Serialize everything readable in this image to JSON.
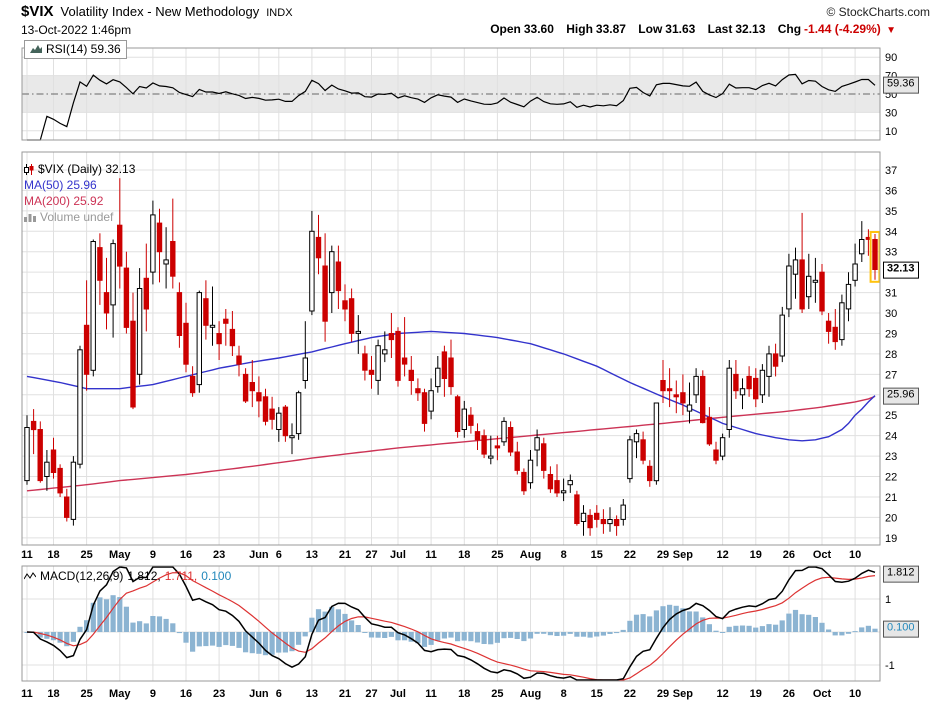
{
  "header": {
    "symbol": "$VIX",
    "name": "Volatility Index - New Methodology",
    "exchange": "INDX",
    "timestamp": "13-Oct-2022 1:46pm",
    "copyright": "© StockCharts.com",
    "quote": {
      "open_label": "Open",
      "open": "33.60",
      "high_label": "High",
      "high": "33.87",
      "low_label": "Low",
      "low": "31.63",
      "last_label": "Last",
      "last": "32.13",
      "chg_label": "Chg",
      "chg": "-1.44 (-4.29%)",
      "direction_icon": "▼"
    }
  },
  "rsi_panel": {
    "legend": "RSI(14) 59.36",
    "badge": "59.36"
  },
  "main_panel": {
    "legend_symbol": "$VIX (Daily) 32.13",
    "legend_ma50": "MA(50) 25.96",
    "legend_ma200": "MA(200) 25.92",
    "legend_volume": "Volume undef",
    "badge_last": "32.13",
    "badge_ma50": "25.96"
  },
  "macd_panel": {
    "legend_name": "MACD(12,26,9)",
    "legend_macd_value": "1.812,",
    "legend_signal_value": "1.711,",
    "legend_hist_value": "0.100",
    "badge_macd": "1.812",
    "badge_hist": "0.100"
  },
  "chart_data": {
    "type": "candlestick",
    "title": "$VIX Volatility Index - New Methodology (Daily)",
    "x_ticks": [
      [
        0,
        "11"
      ],
      [
        4,
        "18"
      ],
      [
        9,
        "25"
      ],
      [
        14,
        "May"
      ],
      [
        19,
        "9"
      ],
      [
        24,
        "16"
      ],
      [
        29,
        "23"
      ],
      [
        35,
        "Jun"
      ],
      [
        38,
        "6"
      ],
      [
        43,
        "13"
      ],
      [
        48,
        "21"
      ],
      [
        52,
        "27"
      ],
      [
        56,
        "Jul"
      ],
      [
        61,
        "11"
      ],
      [
        66,
        "18"
      ],
      [
        71,
        "25"
      ],
      [
        76,
        "Aug"
      ],
      [
        81,
        "8"
      ],
      [
        86,
        "15"
      ],
      [
        91,
        "22"
      ],
      [
        96,
        "29"
      ],
      [
        99,
        "Sep"
      ],
      [
        105,
        "12"
      ],
      [
        110,
        "19"
      ],
      [
        115,
        "26"
      ],
      [
        120,
        "Oct"
      ],
      [
        125,
        "10"
      ]
    ],
    "last": 32.13,
    "candles": [
      [
        "04-11",
        21.8,
        25.0,
        21.6,
        24.4
      ],
      [
        "04-12",
        24.7,
        25.3,
        23.1,
        24.3
      ],
      [
        "04-13",
        24.3,
        24.7,
        21.7,
        21.8
      ],
      [
        "04-14",
        22.0,
        23.3,
        21.3,
        22.7
      ],
      [
        "04-18",
        23.3,
        23.9,
        21.9,
        22.2
      ],
      [
        "04-19",
        22.4,
        22.6,
        21.0,
        21.2
      ],
      [
        "04-20",
        21.0,
        21.4,
        19.8,
        20.0
      ],
      [
        "04-21",
        19.9,
        23.0,
        19.6,
        22.7
      ],
      [
        "04-22",
        22.6,
        28.4,
        22.4,
        28.2
      ],
      [
        "04-25",
        29.4,
        31.6,
        26.2,
        27.0
      ],
      [
        "04-26",
        27.2,
        33.6,
        26.9,
        33.5
      ],
      [
        "04-27",
        33.2,
        33.9,
        30.4,
        31.6
      ],
      [
        "04-28",
        31.0,
        32.7,
        29.2,
        30.0
      ],
      [
        "04-29",
        30.4,
        33.6,
        28.8,
        33.4
      ],
      [
        "05-02",
        34.3,
        36.6,
        31.2,
        32.3
      ],
      [
        "05-03",
        32.2,
        33.0,
        29.0,
        29.3
      ],
      [
        "05-04",
        29.6,
        31.0,
        25.3,
        25.4
      ],
      [
        "05-05",
        27.0,
        32.2,
        26.5,
        31.2
      ],
      [
        "05-06",
        31.7,
        33.4,
        29.1,
        30.2
      ],
      [
        "05-09",
        32.0,
        35.5,
        31.4,
        34.8
      ],
      [
        "05-10",
        34.4,
        35.1,
        31.5,
        33.0
      ],
      [
        "05-11",
        32.4,
        34.2,
        31.2,
        32.6
      ],
      [
        "05-12",
        33.5,
        35.6,
        31.2,
        31.8
      ],
      [
        "05-13",
        31.0,
        31.5,
        28.3,
        28.9
      ],
      [
        "05-16",
        29.5,
        30.5,
        27.1,
        27.5
      ],
      [
        "05-17",
        26.9,
        27.4,
        25.9,
        26.1
      ],
      [
        "05-18",
        26.5,
        31.1,
        26.1,
        31.0
      ],
      [
        "05-19",
        30.7,
        31.6,
        28.7,
        29.4
      ],
      [
        "05-20",
        29.3,
        31.3,
        28.4,
        29.4
      ],
      [
        "05-23",
        29.0,
        29.6,
        27.7,
        28.5
      ],
      [
        "05-24",
        29.7,
        30.2,
        28.4,
        29.5
      ],
      [
        "05-25",
        29.2,
        30.1,
        27.9,
        28.4
      ],
      [
        "05-26",
        27.9,
        28.4,
        26.9,
        27.5
      ],
      [
        "05-27",
        27.0,
        27.3,
        25.6,
        25.7
      ],
      [
        "05-31",
        26.6,
        27.7,
        25.4,
        26.2
      ],
      [
        "06-01",
        26.1,
        26.9,
        24.9,
        25.7
      ],
      [
        "06-02",
        25.9,
        26.3,
        24.5,
        24.7
      ],
      [
        "06-03",
        25.3,
        25.9,
        24.3,
        24.8
      ],
      [
        "06-06",
        24.3,
        25.4,
        23.7,
        25.1
      ],
      [
        "06-07",
        25.4,
        25.5,
        23.7,
        24.0
      ],
      [
        "06-08",
        23.9,
        24.6,
        23.1,
        24.0
      ],
      [
        "06-09",
        24.1,
        26.2,
        23.8,
        26.1
      ],
      [
        "06-10",
        26.7,
        29.6,
        26.3,
        27.8
      ],
      [
        "06-13",
        30.1,
        35.0,
        29.9,
        34.0
      ],
      [
        "06-14",
        33.7,
        34.8,
        31.9,
        32.7
      ],
      [
        "06-15",
        32.3,
        33.9,
        28.6,
        29.6
      ],
      [
        "06-16",
        31.0,
        33.3,
        30.0,
        33.0
      ],
      [
        "06-17",
        32.5,
        33.3,
        30.2,
        31.1
      ],
      [
        "06-21",
        30.6,
        31.4,
        29.6,
        30.2
      ],
      [
        "06-22",
        30.7,
        31.2,
        28.6,
        29.0
      ],
      [
        "06-23",
        29.0,
        29.9,
        28.0,
        29.1
      ],
      [
        "06-24",
        28.0,
        28.4,
        26.7,
        27.2
      ],
      [
        "06-27",
        27.2,
        27.9,
        26.3,
        27.0
      ],
      [
        "06-28",
        26.7,
        28.7,
        26.0,
        28.4
      ],
      [
        "06-29",
        28.0,
        29.1,
        27.6,
        28.2
      ],
      [
        "06-30",
        29.0,
        30.0,
        27.8,
        28.7
      ],
      [
        "07-01",
        29.1,
        29.3,
        26.4,
        26.7
      ],
      [
        "07-05",
        27.8,
        29.8,
        26.9,
        27.5
      ],
      [
        "07-06",
        27.2,
        27.9,
        26.0,
        26.7
      ],
      [
        "07-07",
        26.3,
        26.8,
        25.7,
        26.1
      ],
      [
        "07-08",
        26.1,
        26.3,
        24.2,
        24.6
      ],
      [
        "07-11",
        25.2,
        26.8,
        24.8,
        26.2
      ],
      [
        "07-12",
        26.4,
        27.9,
        26.1,
        27.3
      ],
      [
        "07-13",
        28.1,
        28.4,
        25.9,
        26.8
      ],
      [
        "07-14",
        27.8,
        28.7,
        26.0,
        26.4
      ],
      [
        "07-15",
        25.9,
        26.0,
        23.9,
        24.2
      ],
      [
        "07-18",
        24.3,
        25.7,
        23.9,
        25.3
      ],
      [
        "07-19",
        25.0,
        25.4,
        24.1,
        24.5
      ],
      [
        "07-20",
        24.2,
        24.6,
        23.3,
        23.8
      ],
      [
        "07-21",
        24.0,
        24.3,
        22.9,
        23.1
      ],
      [
        "07-22",
        22.9,
        24.0,
        22.6,
        23.0
      ],
      [
        "07-25",
        23.5,
        24.0,
        22.8,
        23.4
      ],
      [
        "07-26",
        23.7,
        24.9,
        23.5,
        24.7
      ],
      [
        "07-27",
        24.4,
        24.7,
        23.0,
        23.2
      ],
      [
        "07-28",
        23.2,
        23.7,
        22.1,
        22.3
      ],
      [
        "07-29",
        22.2,
        22.4,
        21.1,
        21.3
      ],
      [
        "08-01",
        21.7,
        23.3,
        21.4,
        22.8
      ],
      [
        "08-02",
        23.3,
        24.3,
        22.5,
        23.9
      ],
      [
        "08-03",
        23.6,
        23.9,
        21.9,
        22.3
      ],
      [
        "08-04",
        22.1,
        22.5,
        21.2,
        21.4
      ],
      [
        "08-05",
        21.8,
        22.6,
        21.0,
        21.2
      ],
      [
        "08-08",
        21.2,
        21.9,
        20.8,
        21.3
      ],
      [
        "08-09",
        21.6,
        22.1,
        21.2,
        21.8
      ],
      [
        "08-10",
        21.1,
        21.3,
        19.6,
        19.7
      ],
      [
        "08-11",
        19.8,
        20.6,
        19.1,
        20.2
      ],
      [
        "08-12",
        20.1,
        20.4,
        19.1,
        19.5
      ],
      [
        "08-15",
        20.2,
        20.6,
        19.5,
        19.9
      ],
      [
        "08-16",
        19.9,
        20.4,
        19.2,
        19.7
      ],
      [
        "08-17",
        19.7,
        20.5,
        19.3,
        19.9
      ],
      [
        "08-18",
        19.9,
        20.1,
        19.1,
        19.6
      ],
      [
        "08-19",
        19.9,
        20.9,
        19.6,
        20.6
      ],
      [
        "08-22",
        21.9,
        24.0,
        21.7,
        23.8
      ],
      [
        "08-23",
        23.7,
        24.3,
        22.9,
        24.1
      ],
      [
        "08-24",
        23.8,
        24.2,
        22.6,
        22.8
      ],
      [
        "08-25",
        22.5,
        22.8,
        21.5,
        21.8
      ],
      [
        "08-26",
        21.8,
        25.6,
        21.6,
        25.6
      ],
      [
        "08-29",
        26.7,
        27.7,
        25.6,
        26.2
      ],
      [
        "08-30",
        26.3,
        27.3,
        25.4,
        26.2
      ],
      [
        "08-31",
        26.0,
        26.7,
        25.1,
        25.9
      ],
      [
        "09-01",
        26.1,
        27.0,
        25.0,
        25.6
      ],
      [
        "09-02",
        25.2,
        26.6,
        24.6,
        25.5
      ],
      [
        "09-06",
        26.0,
        27.3,
        25.6,
        26.9
      ],
      [
        "09-07",
        26.9,
        27.2,
        24.6,
        24.64
      ],
      [
        "09-08",
        24.9,
        25.4,
        23.5,
        23.6
      ],
      [
        "09-09",
        23.3,
        23.7,
        22.6,
        22.8
      ],
      [
        "09-12",
        23.0,
        24.1,
        22.8,
        23.9
      ],
      [
        "09-13",
        24.3,
        27.7,
        23.9,
        27.3
      ],
      [
        "09-14",
        27.0,
        27.7,
        25.8,
        26.2
      ],
      [
        "09-15",
        26.0,
        26.8,
        25.3,
        26.3
      ],
      [
        "09-16",
        26.9,
        27.4,
        25.9,
        26.3
      ],
      [
        "09-19",
        26.8,
        27.3,
        25.4,
        25.8
      ],
      [
        "09-20",
        26.0,
        27.5,
        25.6,
        27.2
      ],
      [
        "09-21",
        26.9,
        28.4,
        25.9,
        28.0
      ],
      [
        "09-22",
        28.0,
        28.5,
        26.9,
        27.4
      ],
      [
        "09-23",
        27.9,
        30.3,
        27.6,
        29.9
      ],
      [
        "09-26",
        30.2,
        32.9,
        29.8,
        32.3
      ],
      [
        "09-27",
        31.9,
        33.2,
        30.7,
        32.6
      ],
      [
        "09-28",
        32.6,
        34.9,
        30.0,
        30.2
      ],
      [
        "09-29",
        30.8,
        32.9,
        30.2,
        31.8
      ],
      [
        "09-30",
        31.5,
        32.7,
        30.5,
        31.6
      ],
      [
        "10-03",
        32.0,
        32.4,
        29.9,
        30.1
      ],
      [
        "10-04",
        29.6,
        30.0,
        28.5,
        29.1
      ],
      [
        "10-05",
        29.3,
        30.2,
        28.2,
        28.6
      ],
      [
        "10-06",
        28.7,
        30.9,
        28.4,
        30.5
      ],
      [
        "10-07",
        30.2,
        32.0,
        29.6,
        31.4
      ],
      [
        "10-10",
        31.6,
        33.4,
        31.3,
        32.4
      ],
      [
        "10-11",
        32.9,
        34.5,
        32.5,
        33.6
      ],
      [
        "10-12",
        33.7,
        34.1,
        32.8,
        33.6
      ],
      [
        "10-13",
        33.6,
        33.87,
        31.63,
        32.13
      ]
    ],
    "rsi": {
      "period": 14,
      "last": 59.36,
      "range": [
        0,
        100
      ],
      "yticks": [
        90,
        70,
        50,
        30,
        10
      ],
      "overbought": 70,
      "oversold": 30,
      "midline": 50
    },
    "price": {
      "yticks": [
        19,
        20,
        21,
        22,
        23,
        24,
        25,
        26,
        27,
        28,
        29,
        30,
        31,
        32,
        33,
        34,
        35,
        36,
        37
      ],
      "ylim": [
        18.65,
        37.88
      ],
      "ma50": {
        "period": 50,
        "last": 25.96,
        "keyframes": [
          [
            0,
            26.9
          ],
          [
            5,
            26.6
          ],
          [
            9,
            26.3
          ],
          [
            14,
            26.3
          ],
          [
            19,
            26.5
          ],
          [
            24,
            26.9
          ],
          [
            29,
            27.3
          ],
          [
            34,
            27.6
          ],
          [
            38,
            27.8
          ],
          [
            43,
            28.1
          ],
          [
            48,
            28.5
          ],
          [
            52,
            28.8
          ],
          [
            56,
            29.0
          ],
          [
            61,
            29.1
          ],
          [
            66,
            29.0
          ],
          [
            71,
            28.8
          ],
          [
            76,
            28.5
          ],
          [
            81,
            28.0
          ],
          [
            86,
            27.4
          ],
          [
            91,
            26.6
          ],
          [
            96,
            25.9
          ],
          [
            99,
            25.5
          ],
          [
            101,
            25.2
          ],
          [
            105,
            24.6
          ],
          [
            110,
            24.1
          ],
          [
            113,
            23.9
          ],
          [
            115,
            23.8
          ],
          [
            117,
            23.75
          ],
          [
            119,
            23.8
          ],
          [
            121,
            23.95
          ],
          [
            123,
            24.3
          ],
          [
            124,
            24.6
          ],
          [
            125,
            25.0
          ],
          [
            126,
            25.3
          ],
          [
            127,
            25.65
          ],
          [
            128,
            25.96
          ]
        ]
      },
      "ma200": {
        "period": 200,
        "last": 25.92,
        "keyframes": [
          [
            0,
            21.3
          ],
          [
            9,
            21.6
          ],
          [
            14,
            21.8
          ],
          [
            24,
            22.1
          ],
          [
            29,
            22.3
          ],
          [
            34,
            22.5
          ],
          [
            43,
            22.9
          ],
          [
            48,
            23.1
          ],
          [
            52,
            23.25
          ],
          [
            56,
            23.4
          ],
          [
            61,
            23.55
          ],
          [
            66,
            23.7
          ],
          [
            71,
            23.85
          ],
          [
            76,
            24.0
          ],
          [
            81,
            24.15
          ],
          [
            86,
            24.3
          ],
          [
            91,
            24.45
          ],
          [
            96,
            24.6
          ],
          [
            99,
            24.7
          ],
          [
            105,
            24.9
          ],
          [
            110,
            25.05
          ],
          [
            115,
            25.2
          ],
          [
            120,
            25.4
          ],
          [
            123,
            25.55
          ],
          [
            125,
            25.65
          ],
          [
            127,
            25.8
          ],
          [
            128,
            25.92
          ]
        ]
      }
    },
    "macd": {
      "fast": 12,
      "slow": 26,
      "signal": 9,
      "macd_last": 1.812,
      "signal_last": 1.711,
      "hist_last": 0.1,
      "yticks": [
        1,
        0,
        -1
      ]
    },
    "colors": {
      "up": "#000000",
      "up_fill": "#ffffff",
      "down": "#cc0000",
      "ma50": "#3333cc",
      "ma200": "#cc3355",
      "macd_line": "#000000",
      "macd_signal": "#dd3333",
      "histogram": "#8cb4d2",
      "hist_label": "#2288bb",
      "grid": "#e0e0e0",
      "panel_border": "#999999",
      "rsi_band": "#e9e9e9",
      "highlight": "#ffc20e"
    }
  }
}
